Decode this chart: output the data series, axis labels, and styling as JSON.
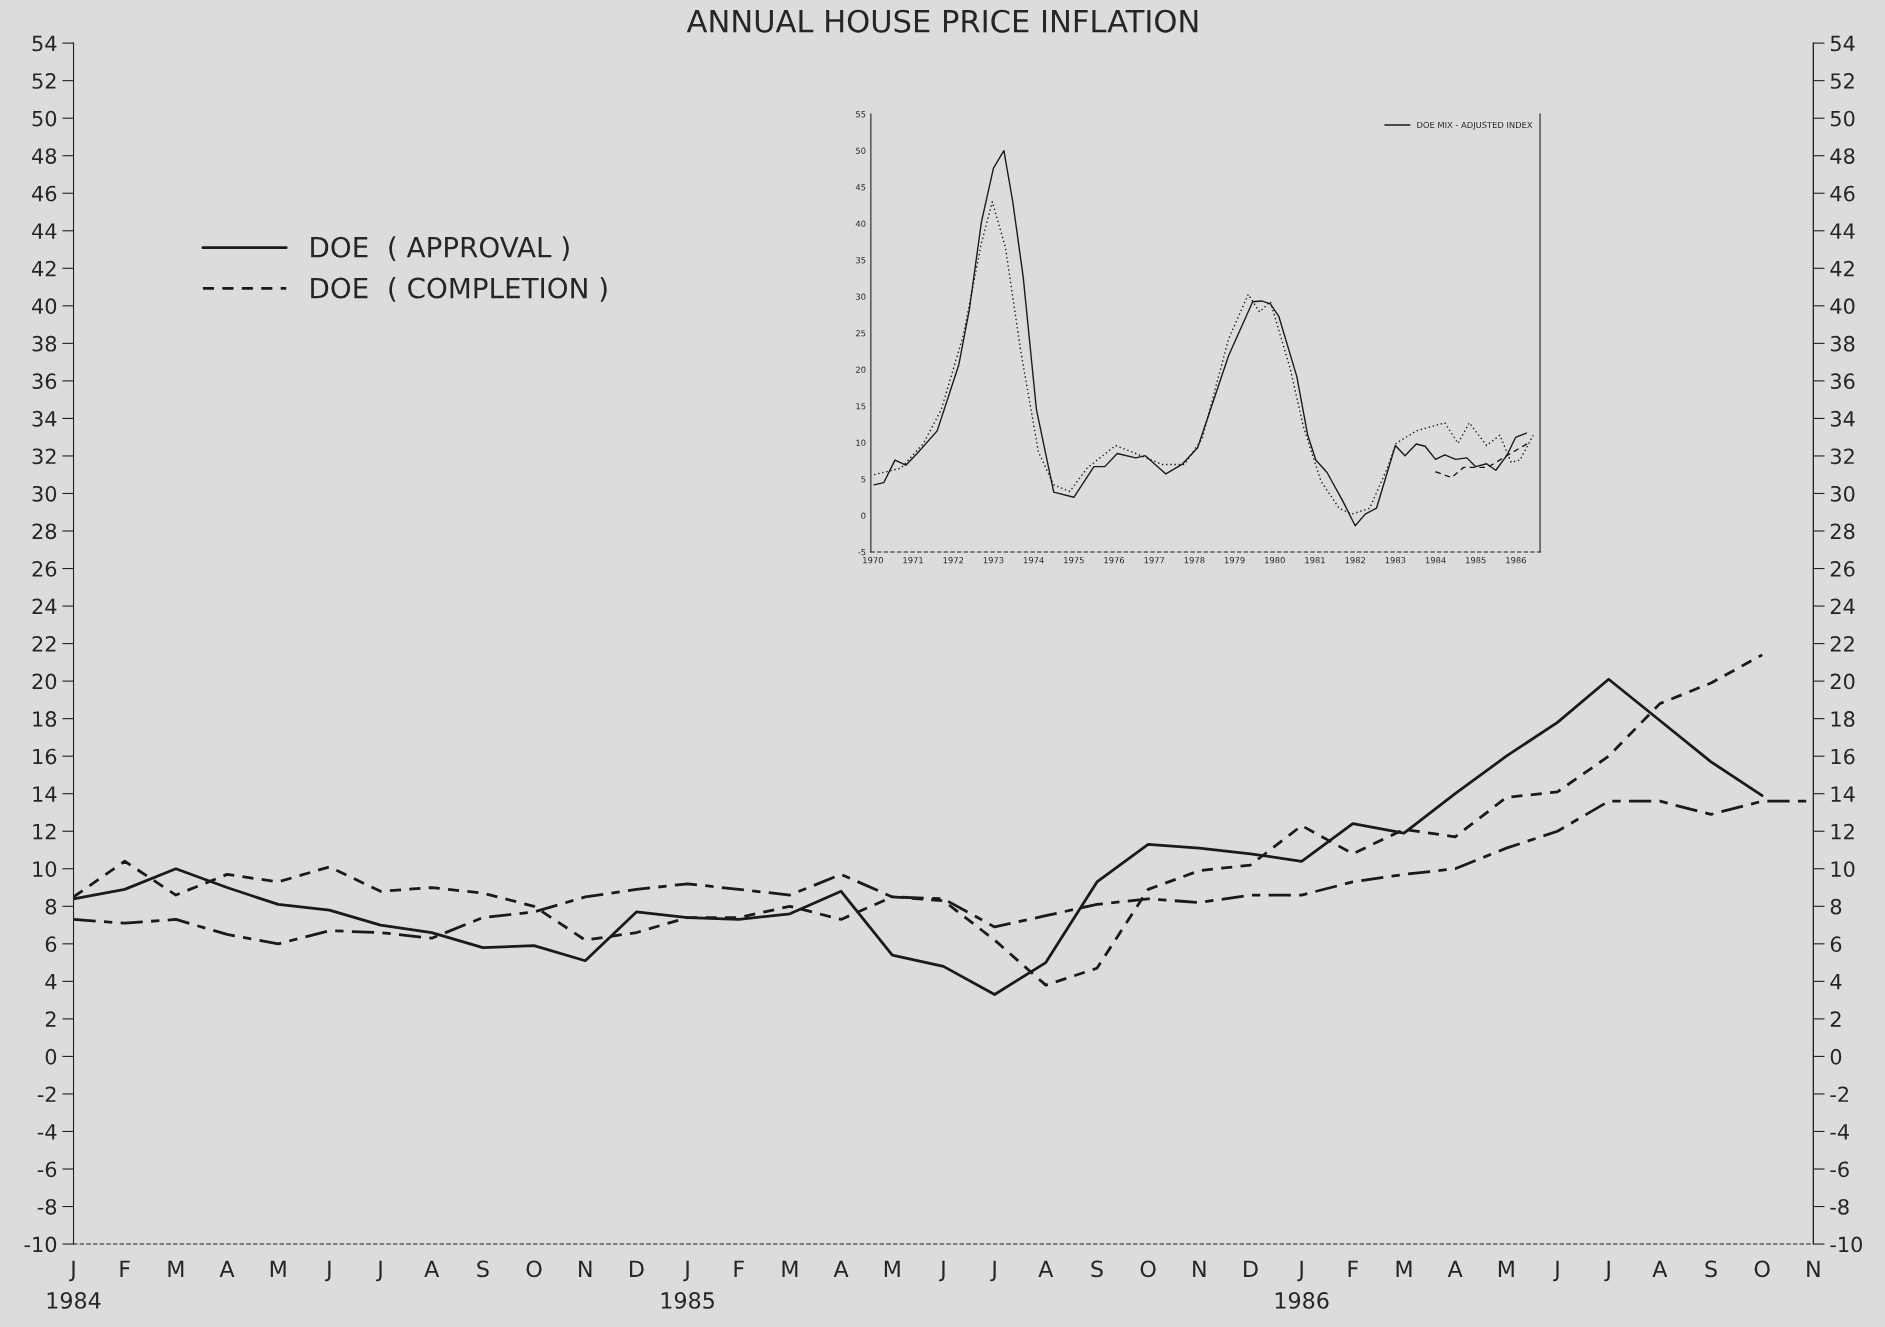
{
  "chart_data": [
    {
      "type": "line",
      "title": "ANNUAL HOUSE PRICE INFLATION",
      "categories": [
        "J\n1984",
        "F",
        "M",
        "A",
        "M",
        "J",
        "J",
        "A",
        "S",
        "O",
        "N",
        "D",
        "J\n1985",
        "F",
        "M",
        "A",
        "M",
        "J",
        "J",
        "A",
        "S",
        "O",
        "N",
        "D",
        "J\n1986",
        "F",
        "M",
        "A",
        "M",
        "J",
        "J",
        "A",
        "S",
        "O",
        "N"
      ],
      "series": [
        {
          "name": "DOE  ( APPROVAL )",
          "color": "#1a1a1a",
          "line_style": "solid",
          "values": [
            8.4,
            8.9,
            10.0,
            9.0,
            8.1,
            7.8,
            7.0,
            6.6,
            5.8,
            5.9,
            5.1,
            7.7,
            7.4,
            7.3,
            7.6,
            8.8,
            5.4,
            4.8,
            3.3,
            5.0,
            9.3,
            11.3,
            11.1,
            10.8,
            10.4,
            12.4,
            11.9,
            14.0,
            16.0,
            17.8,
            20.1,
            17.9,
            15.7,
            13.9,
            null
          ]
        },
        {
          "name": "DOE  ( COMPLETION )",
          "color": "#1a1a1a",
          "line_style": "dashed",
          "values": [
            8.5,
            10.4,
            8.6,
            9.7,
            9.3,
            10.1,
            8.8,
            9.0,
            8.7,
            8.0,
            6.2,
            6.6,
            7.4,
            7.4,
            8.0,
            7.3,
            8.5,
            8.3,
            6.2,
            3.8,
            4.7,
            8.9,
            9.9,
            10.2,
            12.3,
            10.8,
            12.1,
            11.7,
            13.8,
            14.1,
            16.0,
            18.8,
            19.9,
            21.4,
            null
          ]
        },
        {
          "color": "#1a1a1a",
          "line_style": "dashdot",
          "values": [
            7.3,
            7.1,
            7.3,
            6.5,
            6.0,
            6.7,
            6.6,
            6.3,
            7.4,
            7.7,
            8.5,
            8.9,
            9.2,
            8.9,
            8.6,
            9.7,
            8.5,
            8.4,
            6.9,
            7.5,
            8.1,
            8.4,
            8.2,
            8.6,
            8.6,
            9.3,
            9.7,
            10.0,
            11.1,
            12.0,
            13.6,
            13.6,
            12.9,
            13.6,
            13.6
          ]
        }
      ],
      "ylim": [
        -10,
        54
      ],
      "yticks": [
        -10,
        -8,
        -6,
        -4,
        -2,
        0,
        2,
        4,
        6,
        8,
        10,
        12,
        14,
        16,
        18,
        20,
        22,
        24,
        26,
        28,
        30,
        32,
        34,
        36,
        38,
        40,
        42,
        44,
        46,
        48,
        50,
        52,
        54
      ],
      "y2lim": [
        -10,
        54
      ],
      "y2ticks": [
        -10,
        -8,
        -6,
        -4,
        -2,
        0,
        2,
        4,
        6,
        8,
        10,
        12,
        14,
        16,
        18,
        20,
        22,
        24,
        26,
        28,
        30,
        32,
        34,
        36,
        38,
        40,
        42,
        44,
        46,
        48,
        50,
        52,
        54
      ],
      "grid": false,
      "legend": "top left"
    },
    {
      "type": "line",
      "series": [
        {
          "name": "DOE MIX - ADJUSTED INDEX",
          "color": "#1a1a1a",
          "line_style": "solid",
          "x": [
            1970.03,
            1970.27,
            1970.55,
            1970.82,
            1971.1,
            1971.6,
            1972.14,
            1972.4,
            1972.7,
            1973.0,
            1973.26,
            1973.48,
            1973.74,
            1974.07,
            1974.5,
            1975.0,
            1975.5,
            1975.77,
            1976.08,
            1976.54,
            1976.78,
            1977.29,
            1977.69,
            1978.08,
            1978.85,
            1979.45,
            1979.67,
            1979.89,
            1980.1,
            1980.55,
            1980.82,
            1981.02,
            1981.3,
            1981.7,
            1982.0,
            1982.25,
            1982.53,
            1983.0,
            1983.24,
            1983.52,
            1983.74,
            1984.0,
            1984.23,
            1984.5,
            1984.78,
            1985.0,
            1985.27,
            1985.5,
            1985.77,
            1985.99,
            1986.26
          ],
          "values": [
            4.2,
            4.5,
            7.6,
            6.9,
            8.5,
            11.6,
            20.7,
            28.2,
            40.2,
            47.6,
            50,
            43,
            32.7,
            14.5,
            3.2,
            2.5,
            6.7,
            6.7,
            8.5,
            7.9,
            8.2,
            5.7,
            7.0,
            9.3,
            21.9,
            29.3,
            29.4,
            29.0,
            27.3,
            19.0,
            11.0,
            7.6,
            5.9,
            1.9,
            -1.4,
            0.2,
            1.0,
            9.6,
            8.2,
            9.8,
            9.5,
            7.7,
            8.3,
            7.7,
            7.9,
            6.7,
            7.1,
            6.2,
            8.2,
            10.7,
            11.3
          ]
        },
        {
          "color": "#1a1a1a",
          "line_style": "dotted",
          "x": [
            1970.03,
            1970.7,
            1971.26,
            1971.7,
            1972.25,
            1972.7,
            1972.97,
            1973.3,
            1973.68,
            1974.12,
            1974.5,
            1974.9,
            1975.33,
            1976.04,
            1976.54,
            1977.2,
            1977.75,
            1978.19,
            1978.85,
            1979.34,
            1979.62,
            1979.89,
            1980.38,
            1980.71,
            1981.15,
            1981.6,
            1981.92,
            1982.36,
            1982.8,
            1983.02,
            1983.52,
            1984.23,
            1984.56,
            1984.84,
            1985.27,
            1985.6,
            1985.88,
            1986.1,
            1986.43
          ],
          "values": [
            5.6,
            6.5,
            9.9,
            14.5,
            24.7,
            37.3,
            43,
            36.7,
            22.5,
            8.7,
            4.2,
            3.3,
            6.5,
            9.6,
            8.5,
            7.0,
            7.0,
            10.5,
            24.2,
            30.3,
            27.9,
            29.3,
            20.2,
            12.2,
            4.7,
            1.0,
            0.2,
            1.0,
            6.5,
            9.9,
            11.6,
            12.7,
            9.9,
            12.7,
            9.6,
            11.0,
            7.3,
            7.6,
            11.0
          ]
        },
        {
          "color": "#1a1a1a",
          "line_style": "dashed",
          "x": [
            1984.0,
            1984.4,
            1984.7,
            1985.3,
            1985.77,
            1986.3
          ],
          "values": [
            6.0,
            5.2,
            6.6,
            6.6,
            8.2,
            9.9
          ]
        }
      ],
      "xlim": [
        1969.95,
        1986.6
      ],
      "xticks": [
        1970,
        1971,
        1972,
        1973,
        1974,
        1975,
        1976,
        1977,
        1978,
        1979,
        1980,
        1981,
        1982,
        1983,
        1984,
        1985,
        1986
      ],
      "ylim": [
        -5,
        55
      ],
      "yticks": [
        -5,
        0,
        5,
        10,
        15,
        20,
        25,
        30,
        35,
        40,
        45,
        50,
        55
      ],
      "grid": false,
      "legend": "top right"
    }
  ]
}
